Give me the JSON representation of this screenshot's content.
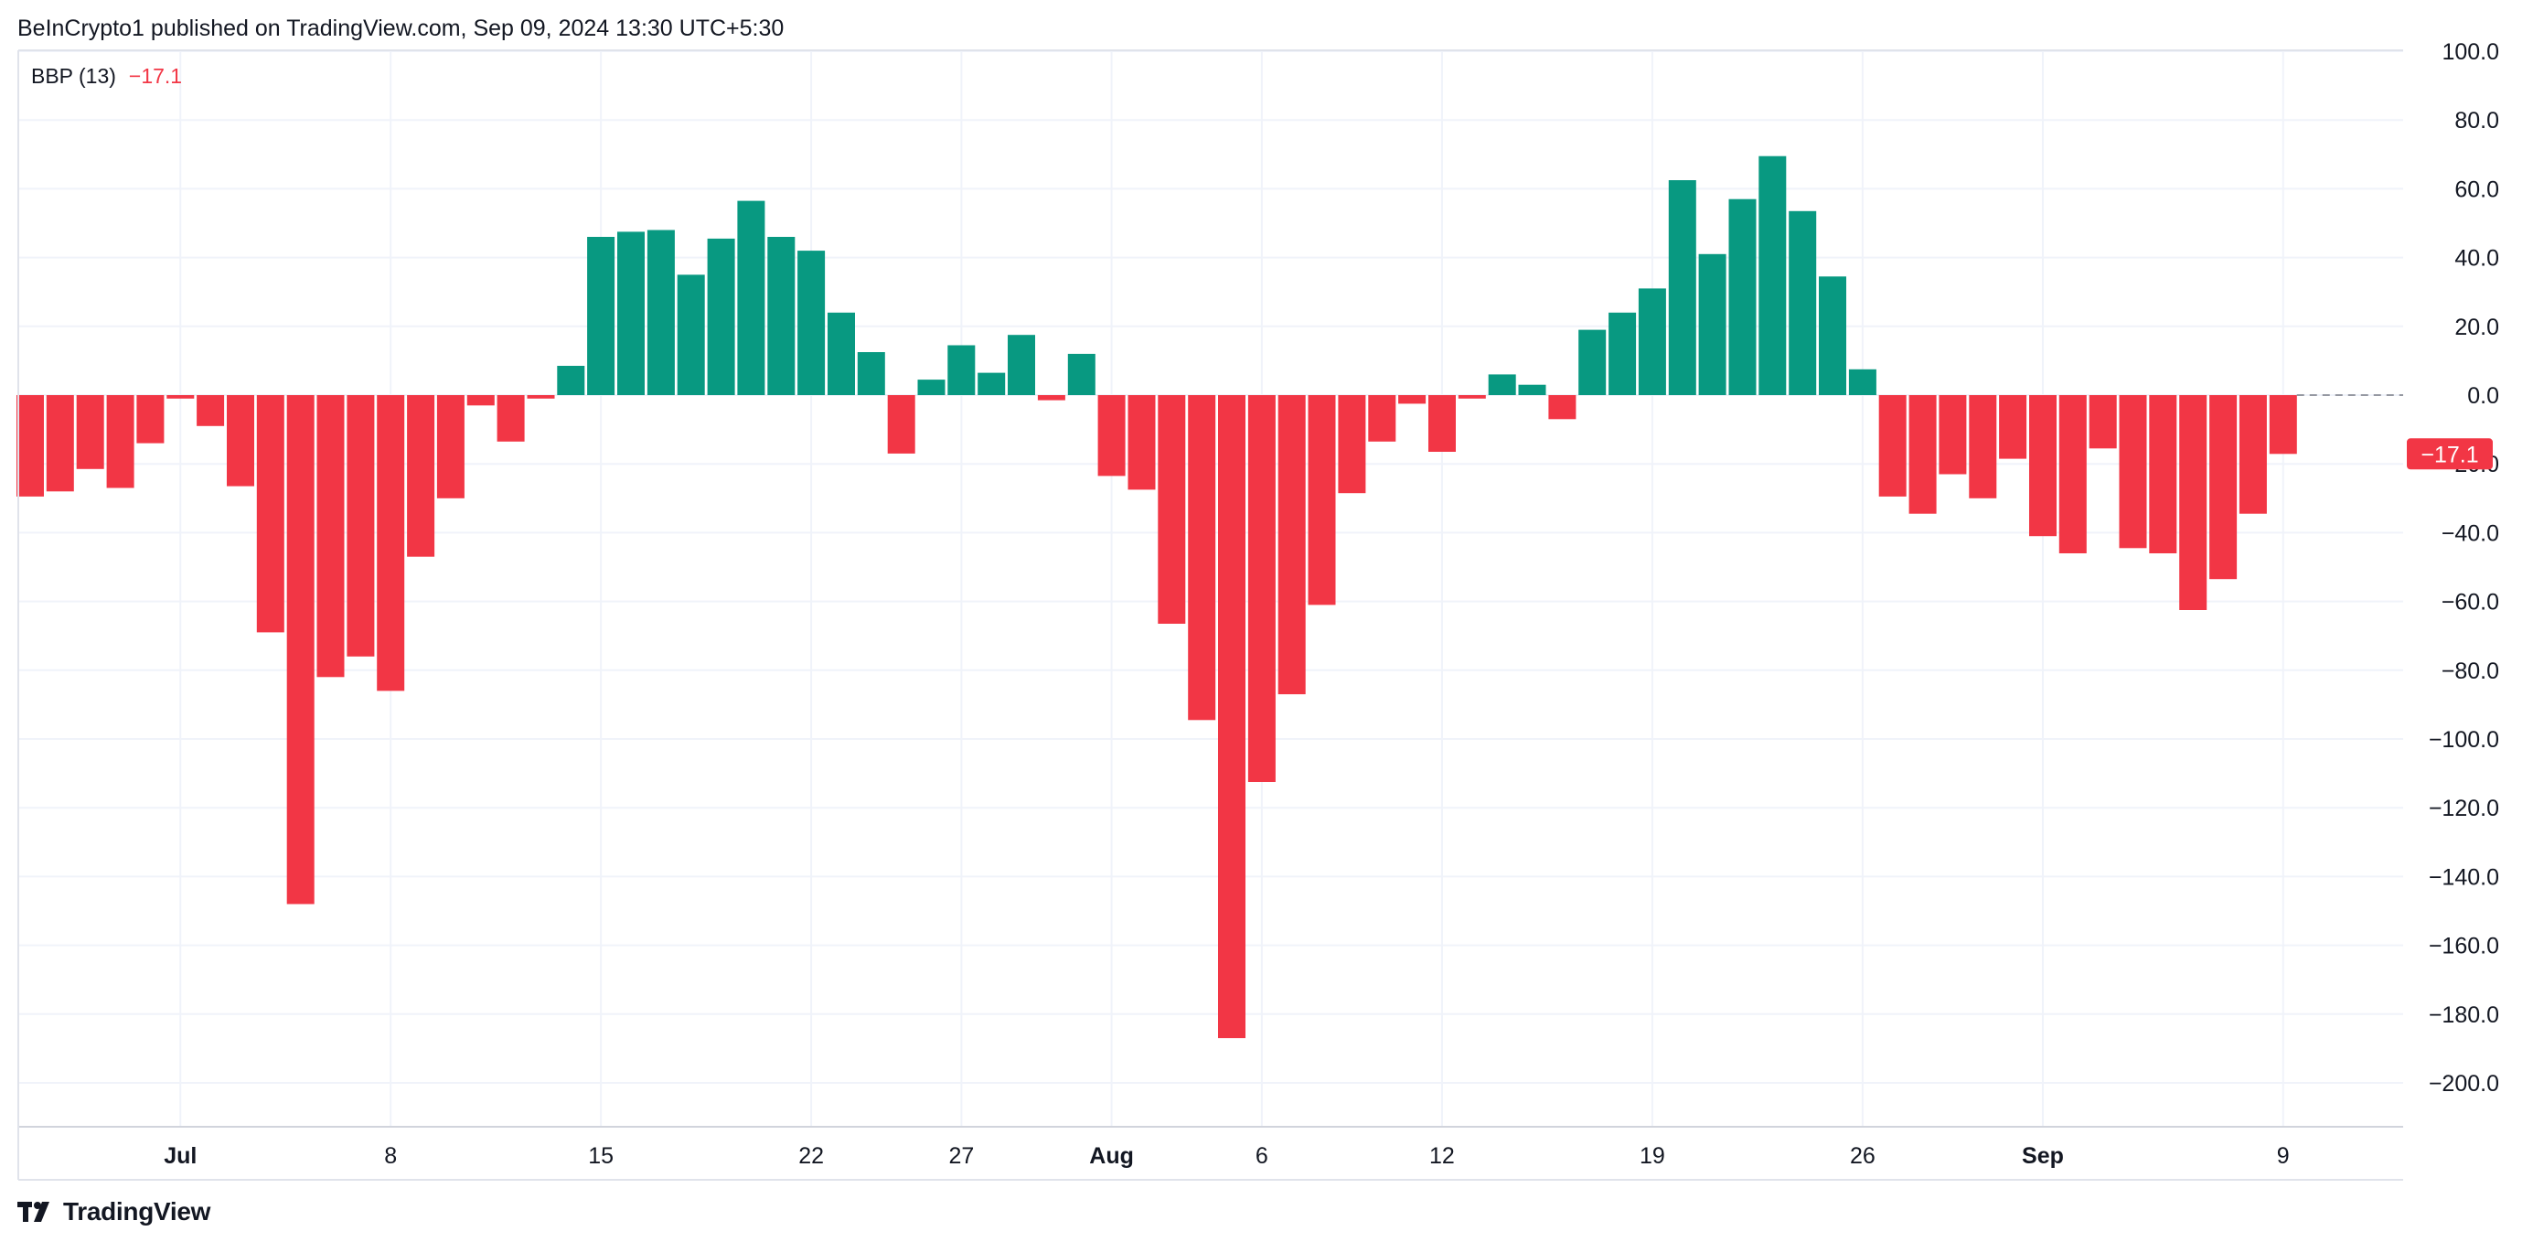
{
  "header": {
    "published": "BeInCrypto1 published on TradingView.com, Sep 09, 2024 13:30 UTC+5:30"
  },
  "footer": {
    "brand": "TradingView",
    "logo_icon": "tradingview-logo-icon"
  },
  "colors": {
    "positive": "#089981",
    "negative": "#f23645",
    "grid": "#f0f3fa",
    "axis_text": "#131722",
    "zero_line": "#9598a1"
  },
  "chart_data": {
    "type": "bar",
    "title": "BBP (13)",
    "legend": {
      "name": "BBP (13)",
      "value": "−17.1"
    },
    "last_value_label": "−17.1",
    "ylim": [
      -212,
      100
    ],
    "y_ticks": [
      100,
      80,
      60,
      40,
      20,
      0,
      -20,
      -40,
      -60,
      -80,
      -100,
      -120,
      -140,
      -160,
      -180,
      -200
    ],
    "y_tick_labels": [
      "100.0",
      "80.0",
      "60.0",
      "40.0",
      "20.0",
      "0.0",
      "−20.0",
      "−40.0",
      "−60.0",
      "−80.0",
      "−100.0",
      "−120.0",
      "−140.0",
      "−160.0",
      "−180.0",
      "−200.0"
    ],
    "x_labels": [
      {
        "label": "Jul",
        "index": 5,
        "bold": true
      },
      {
        "label": "8",
        "index": 12,
        "bold": false
      },
      {
        "label": "15",
        "index": 19,
        "bold": false
      },
      {
        "label": "22",
        "index": 26,
        "bold": false
      },
      {
        "label": "27",
        "index": 31,
        "bold": false
      },
      {
        "label": "Aug",
        "index": 36,
        "bold": true
      },
      {
        "label": "6",
        "index": 41,
        "bold": false
      },
      {
        "label": "12",
        "index": 47,
        "bold": false
      },
      {
        "label": "19",
        "index": 54,
        "bold": false
      },
      {
        "label": "26",
        "index": 61,
        "bold": false
      },
      {
        "label": "Sep",
        "index": 67,
        "bold": true
      },
      {
        "label": "9",
        "index": 75,
        "bold": false
      }
    ],
    "values": [
      -29.5,
      -28,
      -21.5,
      -27,
      -14,
      -1,
      -9,
      -26.5,
      -69,
      -148,
      -82,
      -76,
      -86,
      -47,
      -30,
      -3,
      -13.5,
      -1,
      8.5,
      46,
      47.5,
      48,
      35,
      45.5,
      56.5,
      46,
      42,
      24,
      12.5,
      -17,
      4.5,
      14.5,
      6.5,
      17.5,
      -1.5,
      12,
      -23.5,
      -27.5,
      -66.5,
      -94.5,
      -187,
      -112.5,
      -87,
      -61,
      -28.5,
      -13.5,
      -2.5,
      -16.5,
      -1,
      6,
      3,
      -7,
      19,
      24,
      31,
      62.5,
      41,
      57,
      69.5,
      53.5,
      34.5,
      7.5,
      -29.5,
      -34.5,
      -23,
      -30,
      -18.5,
      -41,
      -46,
      -15.5,
      -44.5,
      -46,
      -62.5,
      -53.5,
      -34.5,
      -17.1
    ]
  }
}
